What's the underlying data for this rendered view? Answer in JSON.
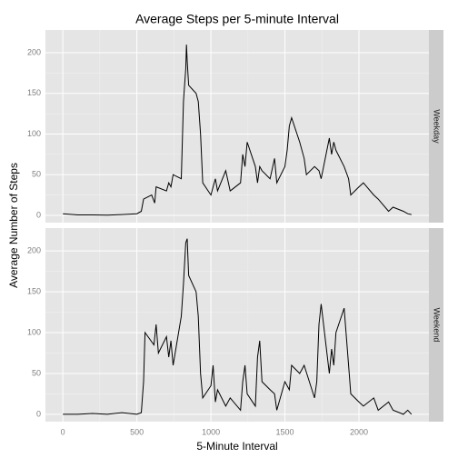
{
  "chart_data": [
    {
      "type": "line",
      "title": "Average Steps per 5-minute Interval",
      "y_label": "Average Number of Steps",
      "facet": "Weekday",
      "x": [
        0,
        100,
        200,
        300,
        400,
        500,
        530,
        545,
        600,
        620,
        630,
        700,
        715,
        730,
        745,
        800,
        815,
        820,
        830,
        835,
        840,
        850,
        900,
        915,
        930,
        945,
        1000,
        1015,
        1030,
        1045,
        1100,
        1130,
        1200,
        1215,
        1230,
        1245,
        1300,
        1315,
        1330,
        1345,
        1400,
        1430,
        1445,
        1500,
        1515,
        1530,
        1545,
        1600,
        1630,
        1645,
        1700,
        1730,
        1745,
        1800,
        1815,
        1830,
        1845,
        1900,
        1930,
        1945,
        2000,
        2030,
        2100,
        2130,
        2200,
        2230,
        2300,
        2330,
        2355
      ],
      "series": [
        {
          "name": "Weekday",
          "color": "#000000",
          "values": [
            2,
            0.5,
            0.5,
            0.2,
            1,
            2,
            5,
            20,
            25,
            15,
            35,
            30,
            40,
            35,
            50,
            45,
            140,
            155,
            180,
            210,
            190,
            160,
            150,
            140,
            100,
            40,
            25,
            35,
            45,
            30,
            55,
            30,
            40,
            75,
            60,
            90,
            60,
            40,
            60,
            55,
            45,
            70,
            40,
            60,
            80,
            110,
            120,
            90,
            70,
            50,
            60,
            55,
            45,
            95,
            75,
            90,
            80,
            60,
            45,
            25,
            35,
            40,
            25,
            20,
            5,
            10,
            5,
            2,
            1
          ]
        }
      ],
      "xlim": [
        -117.75,
        2472.75
      ],
      "xticks": [
        0,
        500,
        1000,
        1500,
        2000
      ],
      "ylim": [
        -9,
        228
      ],
      "yticks": [
        0,
        50,
        100,
        150,
        200
      ],
      "grid": true
    },
    {
      "type": "line",
      "x_label": "5-Minute Interval",
      "facet": "Weekend",
      "x": [
        0,
        100,
        200,
        300,
        400,
        500,
        530,
        545,
        555,
        615,
        630,
        645,
        700,
        715,
        730,
        745,
        800,
        815,
        830,
        840,
        850,
        900,
        915,
        930,
        945,
        1000,
        1015,
        1030,
        1045,
        1100,
        1130,
        1200,
        1215,
        1230,
        1245,
        1300,
        1315,
        1330,
        1345,
        1400,
        1430,
        1445,
        1500,
        1530,
        1545,
        1600,
        1630,
        1700,
        1715,
        1730,
        1745,
        1800,
        1815,
        1830,
        1845,
        1900,
        1930,
        1945,
        2000,
        2030,
        2100,
        2130,
        2200,
        2230,
        2300,
        2330,
        2355
      ],
      "series": [
        {
          "name": "Weekend",
          "color": "#000000",
          "values": [
            0,
            0,
            1,
            0,
            2,
            0,
            2,
            40,
            100,
            85,
            110,
            75,
            95,
            70,
            90,
            60,
            120,
            160,
            210,
            215,
            170,
            150,
            120,
            50,
            20,
            35,
            60,
            15,
            30,
            10,
            20,
            5,
            40,
            60,
            25,
            10,
            70,
            90,
            40,
            30,
            25,
            5,
            40,
            30,
            60,
            50,
            60,
            20,
            40,
            110,
            135,
            50,
            80,
            60,
            100,
            130,
            60,
            25,
            15,
            10,
            20,
            5,
            15,
            5,
            0,
            5,
            0
          ]
        }
      ],
      "xlim": [
        -117.75,
        2472.75
      ],
      "xticks": [
        0,
        500,
        1000,
        1500,
        2000
      ],
      "ylim": [
        -9,
        228
      ],
      "yticks": [
        0,
        50,
        100,
        150,
        200
      ],
      "grid": true
    }
  ]
}
